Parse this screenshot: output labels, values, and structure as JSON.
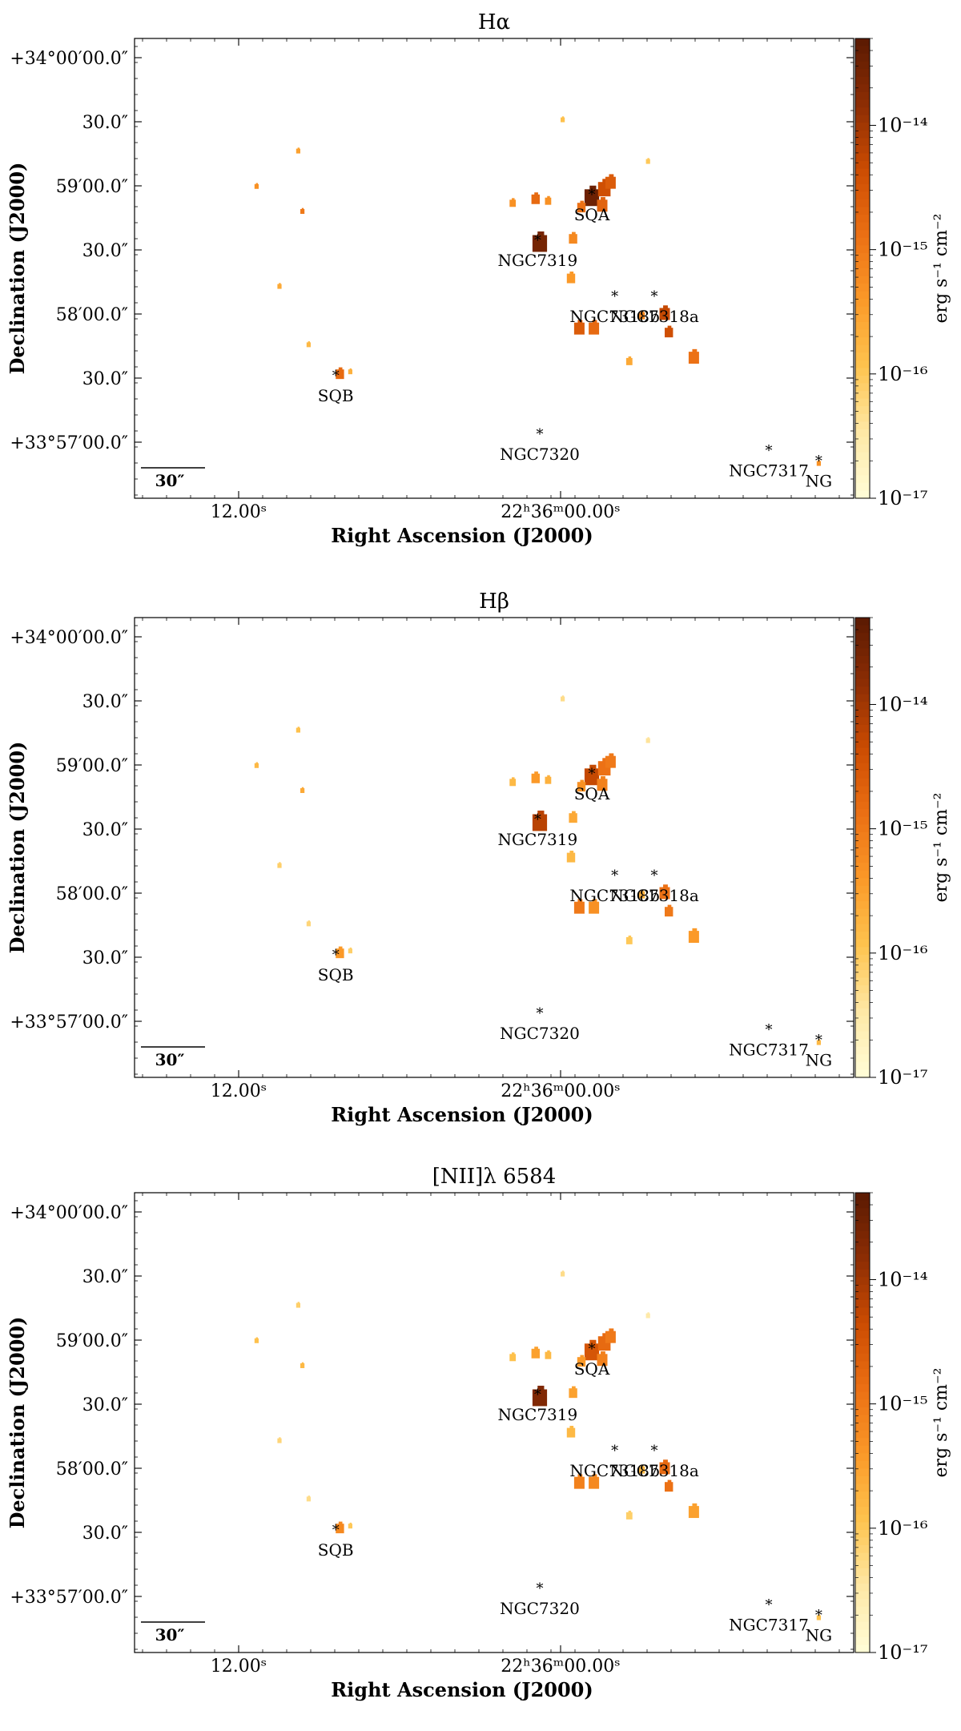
{
  "chart_data": [
    {
      "type": "heatmap",
      "title": "Hα",
      "xlabel": "Right Ascension (J2000)",
      "ylabel": "Declination (J2000)",
      "colorbar_label": "erg s⁻¹ cm⁻²",
      "colorbar_scale": "log",
      "colorbar_range": [
        1e-17,
        5e-14
      ],
      "colorbar_ticks": [
        "10⁻¹⁴",
        "10⁻¹⁵",
        "10⁻¹⁶",
        "10⁻¹⁷"
      ],
      "x_ticks": [
        "12.00ˢ",
        "22ʰ36ᵐ00.00ˢ"
      ],
      "y_ticks": [
        "+34°00′00.0″",
        "30.0″",
        "59′00.0″",
        "30.0″",
        "58′00.0″",
        "30.0″",
        "+33°57′00.0″"
      ],
      "scalebar_label": "30″",
      "colormap": [
        "#fffdd8",
        "#fee8a6",
        "#fec44f",
        "#fb9a29",
        "#ec7014",
        "#cc4c02",
        "#8c2d04",
        "#5a1a02"
      ],
      "objects": [
        {
          "name": "SQA",
          "ra_offset_arcsec": -15,
          "dec_offset_arcsec": 52
        },
        {
          "name": "NGC7319",
          "ra_offset_arcsec": 11,
          "dec_offset_arcsec": 30
        },
        {
          "name": "NGC7318b",
          "ra_offset_arcsec": -26,
          "dec_offset_arcsec": 3
        },
        {
          "name": "NGC7318a",
          "ra_offset_arcsec": -45,
          "dec_offset_arcsec": 3
        },
        {
          "name": "SQB",
          "ra_offset_arcsec": 108,
          "dec_offset_arcsec": -35
        },
        {
          "name": "NGC7320",
          "ra_offset_arcsec": 10,
          "dec_offset_arcsec": -63
        },
        {
          "name": "NGC7317",
          "ra_offset_arcsec": -100,
          "dec_offset_arcsec": -71
        },
        {
          "name": "NG",
          "ra_offset_arcsec": -124,
          "dec_offset_arcsec": -76
        }
      ],
      "emission_regions": [
        {
          "ra": -15,
          "dec": 51,
          "size": 7,
          "log_flux": -13.5
        },
        {
          "ra": -21,
          "dec": 55,
          "size": 6,
          "log_flux": -14.4
        },
        {
          "ra": -24,
          "dec": 58,
          "size": 5,
          "log_flux": -14.6
        },
        {
          "ra": -20,
          "dec": 47,
          "size": 5,
          "log_flux": -14.7
        },
        {
          "ra": -10,
          "dec": 46,
          "size": 4,
          "log_flux": -14.9
        },
        {
          "ra": 10,
          "dec": 29,
          "size": 7,
          "log_flux": -13.6
        },
        {
          "ra": 12,
          "dec": 50,
          "size": 4,
          "log_flux": -14.8
        },
        {
          "ra": 6,
          "dec": 49,
          "size": 3,
          "log_flux": -15.3
        },
        {
          "ra": -6,
          "dec": 31,
          "size": 4,
          "log_flux": -15.2
        },
        {
          "ra": -5,
          "dec": 12,
          "size": 4,
          "log_flux": -15.4
        },
        {
          "ra": -9,
          "dec": -12,
          "size": 5,
          "log_flux": -14.6
        },
        {
          "ra": -16,
          "dec": -12,
          "size": 5,
          "log_flux": -14.8
        },
        {
          "ra": -50,
          "dec": -5,
          "size": 5,
          "log_flux": -14.3
        },
        {
          "ra": -52,
          "dec": -14,
          "size": 4,
          "log_flux": -14.4
        },
        {
          "ra": -64,
          "dec": -26,
          "size": 5,
          "log_flux": -14.9
        },
        {
          "ra": -39,
          "dec": -6,
          "size": 3,
          "log_flux": -15.2
        },
        {
          "ra": -33,
          "dec": -28,
          "size": 3,
          "log_flux": -15.6
        },
        {
          "ra": 106,
          "dec": -34,
          "size": 4,
          "log_flux": -14.8
        },
        {
          "ra": 101,
          "dec": -33,
          "size": 2,
          "log_flux": -15.7
        },
        {
          "ra": 124,
          "dec": 44,
          "size": 2,
          "log_flux": -15.0
        },
        {
          "ra": 146,
          "dec": 56,
          "size": 2,
          "log_flux": -15.3
        },
        {
          "ra": 126,
          "dec": 73,
          "size": 2,
          "log_flux": -15.5
        },
        {
          "ra": 135,
          "dec": 8,
          "size": 2,
          "log_flux": -15.6
        },
        {
          "ra": 121,
          "dec": -20,
          "size": 2,
          "log_flux": -15.8
        },
        {
          "ra": -124,
          "dec": -77,
          "size": 2,
          "log_flux": -15.3
        },
        {
          "ra": 23,
          "dec": 48,
          "size": 3,
          "log_flux": -15.3
        },
        {
          "ra": -1,
          "dec": 88,
          "size": 2,
          "log_flux": -15.9
        },
        {
          "ra": -42,
          "dec": 68,
          "size": 2,
          "log_flux": -16.0
        }
      ]
    },
    {
      "type": "heatmap",
      "title": "Hβ",
      "xlabel": "Right Ascension (J2000)",
      "ylabel": "Declination (J2000)",
      "colorbar_label": "erg s⁻¹ cm⁻²",
      "colorbar_scale": "log",
      "colorbar_range": [
        1e-17,
        5e-14
      ],
      "colorbar_ticks": [
        "10⁻¹⁴",
        "10⁻¹⁵",
        "10⁻¹⁶",
        "10⁻¹⁷"
      ],
      "x_ticks": [
        "12.00ˢ",
        "22ʰ36ᵐ00.00ˢ"
      ],
      "y_ticks": [
        "+34°00′00.0″",
        "30.0″",
        "59′00.0″",
        "30.0″",
        "58′00.0″",
        "30.0″",
        "+33°57′00.0″"
      ],
      "scalebar_label": "30″",
      "colormap": [
        "#fffdd8",
        "#fee8a6",
        "#fec44f",
        "#fb9a29",
        "#ec7014",
        "#cc4c02",
        "#8c2d04",
        "#5a1a02"
      ],
      "objects": [
        {
          "name": "SQA",
          "ra_offset_arcsec": -15,
          "dec_offset_arcsec": 52
        },
        {
          "name": "NGC7319",
          "ra_offset_arcsec": 11,
          "dec_offset_arcsec": 30
        },
        {
          "name": "NGC7318b",
          "ra_offset_arcsec": -26,
          "dec_offset_arcsec": 3
        },
        {
          "name": "NGC7318a",
          "ra_offset_arcsec": -45,
          "dec_offset_arcsec": 3
        },
        {
          "name": "SQB",
          "ra_offset_arcsec": 108,
          "dec_offset_arcsec": -35
        },
        {
          "name": "NGC7320",
          "ra_offset_arcsec": 10,
          "dec_offset_arcsec": -63
        },
        {
          "name": "NGC7317",
          "ra_offset_arcsec": -100,
          "dec_offset_arcsec": -71
        },
        {
          "name": "NG",
          "ra_offset_arcsec": -124,
          "dec_offset_arcsec": -76
        }
      ],
      "emission_regions": [
        {
          "ra": -15,
          "dec": 51,
          "size": 7,
          "log_flux": -14.3
        },
        {
          "ra": -21,
          "dec": 55,
          "size": 6,
          "log_flux": -14.9
        },
        {
          "ra": -24,
          "dec": 58,
          "size": 5,
          "log_flux": -15.0
        },
        {
          "ra": -20,
          "dec": 47,
          "size": 5,
          "log_flux": -15.1
        },
        {
          "ra": -10,
          "dec": 46,
          "size": 4,
          "log_flux": -15.3
        },
        {
          "ra": 10,
          "dec": 29,
          "size": 7,
          "log_flux": -14.2
        },
        {
          "ra": 12,
          "dec": 50,
          "size": 4,
          "log_flux": -15.4
        },
        {
          "ra": 6,
          "dec": 49,
          "size": 3,
          "log_flux": -15.7
        },
        {
          "ra": -6,
          "dec": 31,
          "size": 4,
          "log_flux": -15.6
        },
        {
          "ra": -5,
          "dec": 12,
          "size": 4,
          "log_flux": -15.8
        },
        {
          "ra": -9,
          "dec": -12,
          "size": 5,
          "log_flux": -15.0
        },
        {
          "ra": -16,
          "dec": -12,
          "size": 5,
          "log_flux": -15.3
        },
        {
          "ra": -50,
          "dec": -5,
          "size": 5,
          "log_flux": -14.9
        },
        {
          "ra": -52,
          "dec": -14,
          "size": 4,
          "log_flux": -15.0
        },
        {
          "ra": -64,
          "dec": -26,
          "size": 5,
          "log_flux": -15.4
        },
        {
          "ra": -39,
          "dec": -6,
          "size": 3,
          "log_flux": -15.7
        },
        {
          "ra": -33,
          "dec": -28,
          "size": 3,
          "log_flux": -16.0
        },
        {
          "ra": 106,
          "dec": -34,
          "size": 4,
          "log_flux": -15.4
        },
        {
          "ra": 101,
          "dec": -33,
          "size": 2,
          "log_flux": -16.1
        },
        {
          "ra": 124,
          "dec": 44,
          "size": 2,
          "log_flux": -15.6
        },
        {
          "ra": 146,
          "dec": 56,
          "size": 2,
          "log_flux": -15.8
        },
        {
          "ra": 126,
          "dec": 73,
          "size": 2,
          "log_flux": -15.9
        },
        {
          "ra": 135,
          "dec": 8,
          "size": 2,
          "log_flux": -16.1
        },
        {
          "ra": 121,
          "dec": -20,
          "size": 2,
          "log_flux": -16.2
        },
        {
          "ra": -124,
          "dec": -77,
          "size": 2,
          "log_flux": -15.8
        },
        {
          "ra": 23,
          "dec": 48,
          "size": 3,
          "log_flux": -15.8
        },
        {
          "ra": -1,
          "dec": 88,
          "size": 2,
          "log_flux": -16.3
        },
        {
          "ra": -42,
          "dec": 68,
          "size": 2,
          "log_flux": -16.4
        }
      ]
    },
    {
      "type": "heatmap",
      "title": "[NII]λ 6584",
      "xlabel": "Right Ascension (J2000)",
      "ylabel": "Declination (J2000)",
      "colorbar_label": "erg s⁻¹ cm⁻²",
      "colorbar_scale": "log",
      "colorbar_range": [
        1e-17,
        5e-14
      ],
      "colorbar_ticks": [
        "10⁻¹⁴",
        "10⁻¹⁵",
        "10⁻¹⁶",
        "10⁻¹⁷"
      ],
      "x_ticks": [
        "12.00ˢ",
        "22ʰ36ᵐ00.00ˢ"
      ],
      "y_ticks": [
        "+34°00′00.0″",
        "30.0″",
        "59′00.0″",
        "30.0″",
        "58′00.0″",
        "30.0″",
        "+33°57′00.0″"
      ],
      "scalebar_label": "30″",
      "colormap": [
        "#fffdd8",
        "#fee8a6",
        "#fec44f",
        "#fb9a29",
        "#ec7014",
        "#cc4c02",
        "#8c2d04",
        "#5a1a02"
      ],
      "objects": [
        {
          "name": "SQA",
          "ra_offset_arcsec": -15,
          "dec_offset_arcsec": 52
        },
        {
          "name": "NGC7319",
          "ra_offset_arcsec": 11,
          "dec_offset_arcsec": 30
        },
        {
          "name": "NGC7318b",
          "ra_offset_arcsec": -26,
          "dec_offset_arcsec": 3
        },
        {
          "name": "NGC7318a",
          "ra_offset_arcsec": -45,
          "dec_offset_arcsec": 3
        },
        {
          "name": "SQB",
          "ra_offset_arcsec": 108,
          "dec_offset_arcsec": -35
        },
        {
          "name": "NGC7320",
          "ra_offset_arcsec": 10,
          "dec_offset_arcsec": -63
        },
        {
          "name": "NGC7317",
          "ra_offset_arcsec": -100,
          "dec_offset_arcsec": -71
        },
        {
          "name": "NG",
          "ra_offset_arcsec": -124,
          "dec_offset_arcsec": -76
        }
      ],
      "emission_regions": [
        {
          "ra": -15,
          "dec": 51,
          "size": 7,
          "log_flux": -14.5
        },
        {
          "ra": -21,
          "dec": 55,
          "size": 6,
          "log_flux": -14.8
        },
        {
          "ra": -24,
          "dec": 58,
          "size": 5,
          "log_flux": -15.0
        },
        {
          "ra": -20,
          "dec": 47,
          "size": 5,
          "log_flux": -15.1
        },
        {
          "ra": -10,
          "dec": 46,
          "size": 4,
          "log_flux": -15.4
        },
        {
          "ra": 10,
          "dec": 29,
          "size": 7,
          "log_flux": -13.7
        },
        {
          "ra": 12,
          "dec": 50,
          "size": 4,
          "log_flux": -15.5
        },
        {
          "ra": 6,
          "dec": 49,
          "size": 3,
          "log_flux": -15.8
        },
        {
          "ra": -6,
          "dec": 31,
          "size": 4,
          "log_flux": -15.5
        },
        {
          "ra": -5,
          "dec": 12,
          "size": 4,
          "log_flux": -15.8
        },
        {
          "ra": -9,
          "dec": -12,
          "size": 5,
          "log_flux": -15.1
        },
        {
          "ra": -16,
          "dec": -12,
          "size": 5,
          "log_flux": -15.2
        },
        {
          "ra": -50,
          "dec": -5,
          "size": 5,
          "log_flux": -14.8
        },
        {
          "ra": -52,
          "dec": -14,
          "size": 4,
          "log_flux": -14.9
        },
        {
          "ra": -64,
          "dec": -26,
          "size": 5,
          "log_flux": -15.5
        },
        {
          "ra": -39,
          "dec": -6,
          "size": 3,
          "log_flux": -15.8
        },
        {
          "ra": -33,
          "dec": -28,
          "size": 3,
          "log_flux": -16.1
        },
        {
          "ra": 106,
          "dec": -34,
          "size": 4,
          "log_flux": -15.2
        },
        {
          "ra": 101,
          "dec": -33,
          "size": 2,
          "log_flux": -16.0
        },
        {
          "ra": 124,
          "dec": 44,
          "size": 2,
          "log_flux": -15.8
        },
        {
          "ra": 146,
          "dec": 56,
          "size": 2,
          "log_flux": -15.9
        },
        {
          "ra": 126,
          "dec": 73,
          "size": 2,
          "log_flux": -16.1
        },
        {
          "ra": 135,
          "dec": 8,
          "size": 2,
          "log_flux": -16.2
        },
        {
          "ra": 121,
          "dec": -20,
          "size": 2,
          "log_flux": -16.3
        },
        {
          "ra": -124,
          "dec": -77,
          "size": 2,
          "log_flux": -15.9
        },
        {
          "ra": 23,
          "dec": 48,
          "size": 3,
          "log_flux": -15.9
        },
        {
          "ra": -1,
          "dec": 88,
          "size": 2,
          "log_flux": -16.3
        },
        {
          "ra": -42,
          "dec": 68,
          "size": 2,
          "log_flux": -16.5
        }
      ]
    }
  ]
}
